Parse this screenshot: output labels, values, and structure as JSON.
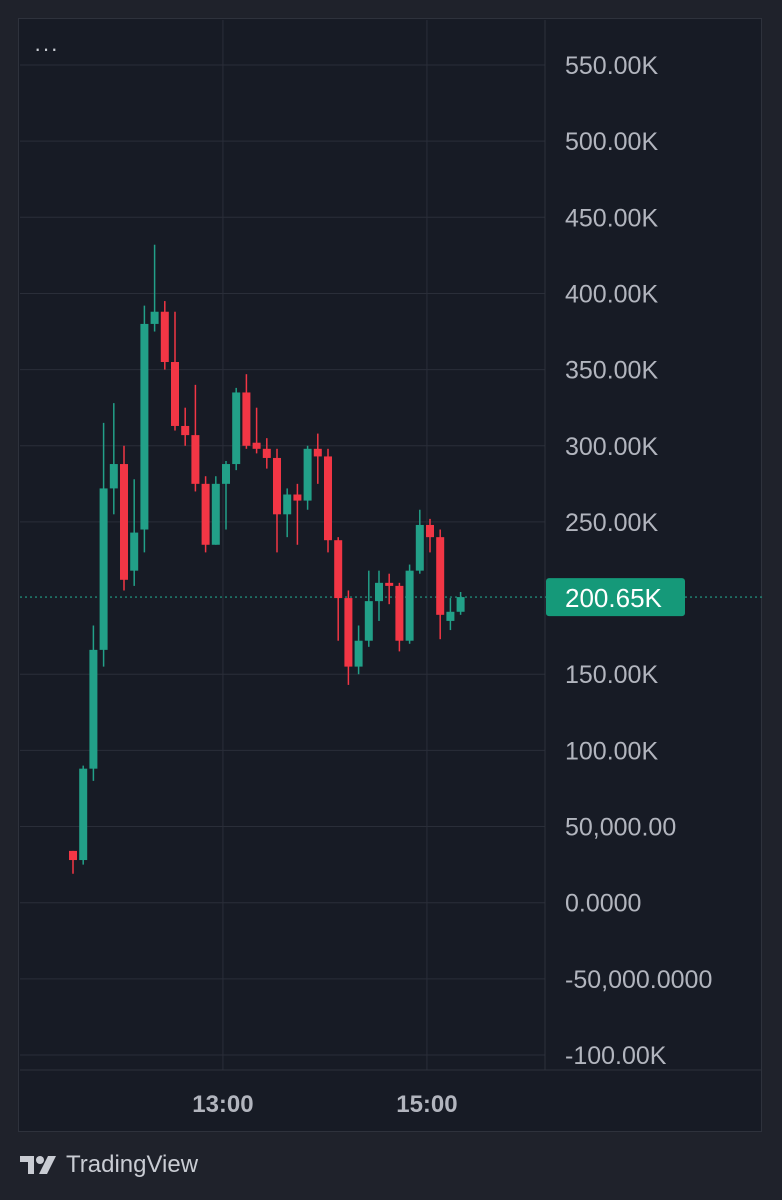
{
  "menu": {
    "icon": "ellipsis-icon",
    "glyph": "···"
  },
  "brand": {
    "name": "TradingView",
    "icon": "tradingview-logo-icon"
  },
  "colors": {
    "up": "#22a088",
    "down": "#f23645",
    "grid": "#2a2e39",
    "axis_text": "#b2b5be",
    "price_label_bg": "#159979",
    "background": "#171b25"
  },
  "chart_data": {
    "type": "candlestick",
    "title": "",
    "ylim": [
      -100000,
      550000
    ],
    "y_ticks": [
      {
        "value": 550000,
        "label": "550.00K"
      },
      {
        "value": 500000,
        "label": "500.00K"
      },
      {
        "value": 450000,
        "label": "450.00K"
      },
      {
        "value": 400000,
        "label": "400.00K"
      },
      {
        "value": 350000,
        "label": "350.00K"
      },
      {
        "value": 300000,
        "label": "300.00K"
      },
      {
        "value": 250000,
        "label": "250.00K"
      },
      {
        "value": 150000,
        "label": "150.00K"
      },
      {
        "value": 100000,
        "label": "100.00K"
      },
      {
        "value": 50000,
        "label": "50,000.00"
      },
      {
        "value": 0,
        "label": "0.0000"
      },
      {
        "value": -50000,
        "label": "-50,000.0000"
      },
      {
        "value": -100000,
        "label": "-100.00K"
      }
    ],
    "x_ticks": [
      {
        "label": "13:00",
        "index": 14.7
      },
      {
        "label": "15:00",
        "index": 34.7
      }
    ],
    "last_price": {
      "value": 200650,
      "label": "200.65K"
    },
    "candles": [
      {
        "o": 34000,
        "h": 34000,
        "l": 19000,
        "c": 28000
      },
      {
        "o": 28000,
        "h": 90000,
        "l": 25000,
        "c": 88000
      },
      {
        "o": 88000,
        "h": 182000,
        "l": 80000,
        "c": 166000
      },
      {
        "o": 166000,
        "h": 315000,
        "l": 155000,
        "c": 272000
      },
      {
        "o": 272000,
        "h": 328000,
        "l": 255000,
        "c": 288000
      },
      {
        "o": 288000,
        "h": 300000,
        "l": 205000,
        "c": 212000
      },
      {
        "o": 218000,
        "h": 278000,
        "l": 208000,
        "c": 243000
      },
      {
        "o": 245000,
        "h": 392000,
        "l": 230000,
        "c": 380000
      },
      {
        "o": 380000,
        "h": 432000,
        "l": 375000,
        "c": 388000
      },
      {
        "o": 388000,
        "h": 395000,
        "l": 350000,
        "c": 355000
      },
      {
        "o": 355000,
        "h": 388000,
        "l": 310000,
        "c": 313000
      },
      {
        "o": 313000,
        "h": 325000,
        "l": 300000,
        "c": 307000
      },
      {
        "o": 307000,
        "h": 340000,
        "l": 270000,
        "c": 275000
      },
      {
        "o": 275000,
        "h": 280000,
        "l": 230000,
        "c": 235000
      },
      {
        "o": 235000,
        "h": 280000,
        "l": 235000,
        "c": 275000
      },
      {
        "o": 275000,
        "h": 290000,
        "l": 245000,
        "c": 288000
      },
      {
        "o": 288000,
        "h": 338000,
        "l": 284000,
        "c": 335000
      },
      {
        "o": 335000,
        "h": 347000,
        "l": 298000,
        "c": 300000
      },
      {
        "o": 302000,
        "h": 325000,
        "l": 295000,
        "c": 298000
      },
      {
        "o": 298000,
        "h": 305000,
        "l": 285000,
        "c": 292000
      },
      {
        "o": 292000,
        "h": 298000,
        "l": 230000,
        "c": 255000
      },
      {
        "o": 255000,
        "h": 272000,
        "l": 240000,
        "c": 268000
      },
      {
        "o": 268000,
        "h": 275000,
        "l": 235000,
        "c": 264000
      },
      {
        "o": 264000,
        "h": 300000,
        "l": 258000,
        "c": 298000
      },
      {
        "o": 298000,
        "h": 308000,
        "l": 275000,
        "c": 293000
      },
      {
        "o": 293000,
        "h": 298000,
        "l": 230000,
        "c": 238000
      },
      {
        "o": 238000,
        "h": 240000,
        "l": 172000,
        "c": 200000
      },
      {
        "o": 200000,
        "h": 205000,
        "l": 143000,
        "c": 155000
      },
      {
        "o": 155000,
        "h": 182000,
        "l": 150000,
        "c": 172000
      },
      {
        "o": 172000,
        "h": 218000,
        "l": 168000,
        "c": 198000
      },
      {
        "o": 198000,
        "h": 218000,
        "l": 185000,
        "c": 210000
      },
      {
        "o": 210000,
        "h": 216000,
        "l": 196000,
        "c": 208000
      },
      {
        "o": 208000,
        "h": 210000,
        "l": 165000,
        "c": 172000
      },
      {
        "o": 172000,
        "h": 222000,
        "l": 170000,
        "c": 218000
      },
      {
        "o": 218000,
        "h": 258000,
        "l": 216000,
        "c": 248000
      },
      {
        "o": 248000,
        "h": 252000,
        "l": 230000,
        "c": 240000
      },
      {
        "o": 240000,
        "h": 245000,
        "l": 173000,
        "c": 189000
      },
      {
        "o": 185000,
        "h": 200000,
        "l": 179000,
        "c": 191000
      },
      {
        "o": 191000,
        "h": 204000,
        "l": 189000,
        "c": 200650
      }
    ]
  }
}
